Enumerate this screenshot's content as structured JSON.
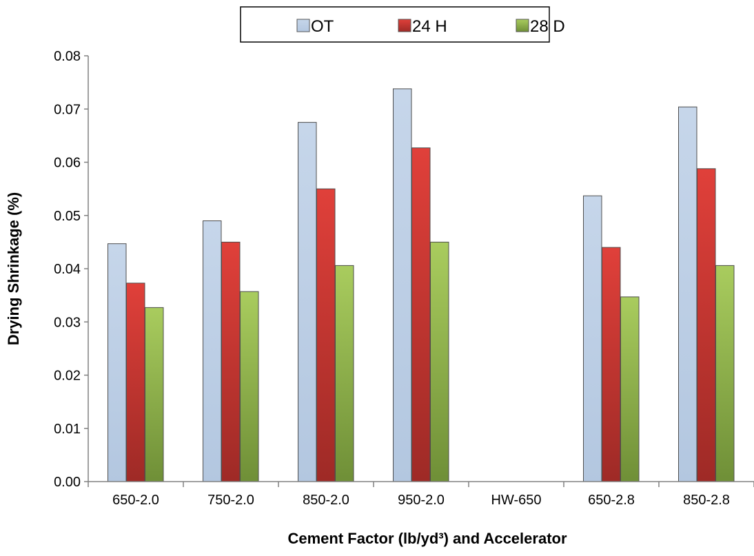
{
  "chart_data": {
    "type": "bar",
    "title": "",
    "xlabel": "Cement Factor  (lb/yd³) and Accelerator",
    "ylabel": "Drying Shrinkage (%)",
    "ylim": [
      0,
      0.08
    ],
    "yticks": [
      "0.00",
      "0.01",
      "0.02",
      "0.03",
      "0.04",
      "0.05",
      "0.06",
      "0.07",
      "0.08"
    ],
    "grid": false,
    "legend_position": "top",
    "categories": [
      "650-2.0",
      "750-2.0",
      "850-2.0",
      "950-2.0",
      "HW-650",
      "650-2.8",
      "850-2.8"
    ],
    "series": [
      {
        "name": "OT",
        "color": "#b9cde5",
        "values": [
          0.0447,
          0.049,
          0.0675,
          0.0738,
          null,
          0.0537,
          0.0704
        ]
      },
      {
        "name": "24 H",
        "color": "#d43b36",
        "values": [
          0.0373,
          0.045,
          0.055,
          0.0627,
          null,
          0.044,
          0.0588
        ]
      },
      {
        "name": "28 D",
        "color": "#9bbb59",
        "values": [
          0.0327,
          0.0357,
          0.0406,
          0.045,
          null,
          0.0347,
          0.0406
        ]
      }
    ]
  }
}
